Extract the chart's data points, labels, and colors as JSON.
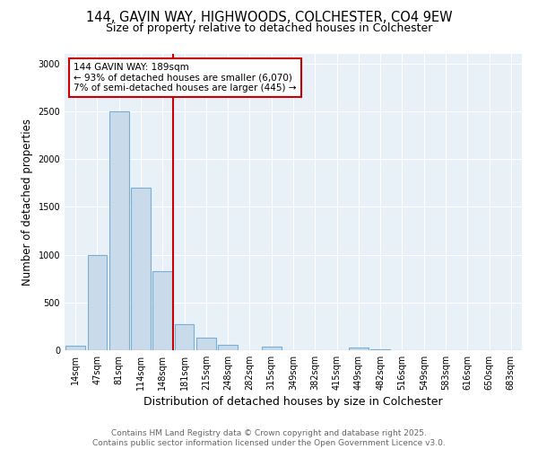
{
  "title_line1": "144, GAVIN WAY, HIGHWOODS, COLCHESTER, CO4 9EW",
  "title_line2": "Size of property relative to detached houses in Colchester",
  "xlabel": "Distribution of detached houses by size in Colchester",
  "ylabel": "Number of detached properties",
  "categories": [
    "14sqm",
    "47sqm",
    "81sqm",
    "114sqm",
    "148sqm",
    "181sqm",
    "215sqm",
    "248sqm",
    "282sqm",
    "315sqm",
    "349sqm",
    "382sqm",
    "415sqm",
    "449sqm",
    "482sqm",
    "516sqm",
    "549sqm",
    "583sqm",
    "616sqm",
    "650sqm",
    "683sqm"
  ],
  "values": [
    50,
    1000,
    2500,
    1700,
    830,
    270,
    130,
    60,
    0,
    35,
    0,
    0,
    0,
    30,
    5,
    0,
    0,
    0,
    0,
    0,
    0
  ],
  "bar_color": "#c9daea",
  "bar_edge_color": "#7aafd4",
  "vline_color": "#cc0000",
  "vline_x": 4.5,
  "annotation_text": "144 GAVIN WAY: 189sqm\n← 93% of detached houses are smaller (6,070)\n7% of semi-detached houses are larger (445) →",
  "annotation_box_facecolor": "#ffffff",
  "annotation_box_edgecolor": "#cc0000",
  "ylim": [
    0,
    3100
  ],
  "yticks": [
    0,
    500,
    1000,
    1500,
    2000,
    2500,
    3000
  ],
  "grid_color": "#d0dce8",
  "background_color": "#e8f0f8",
  "footer_line1": "Contains HM Land Registry data © Crown copyright and database right 2025.",
  "footer_line2": "Contains public sector information licensed under the Open Government Licence v3.0.",
  "title_fontsize": 10.5,
  "subtitle_fontsize": 9,
  "ylabel_fontsize": 8.5,
  "xlabel_fontsize": 9,
  "tick_fontsize": 7,
  "annot_fontsize": 7.5,
  "footer_fontsize": 6.5
}
